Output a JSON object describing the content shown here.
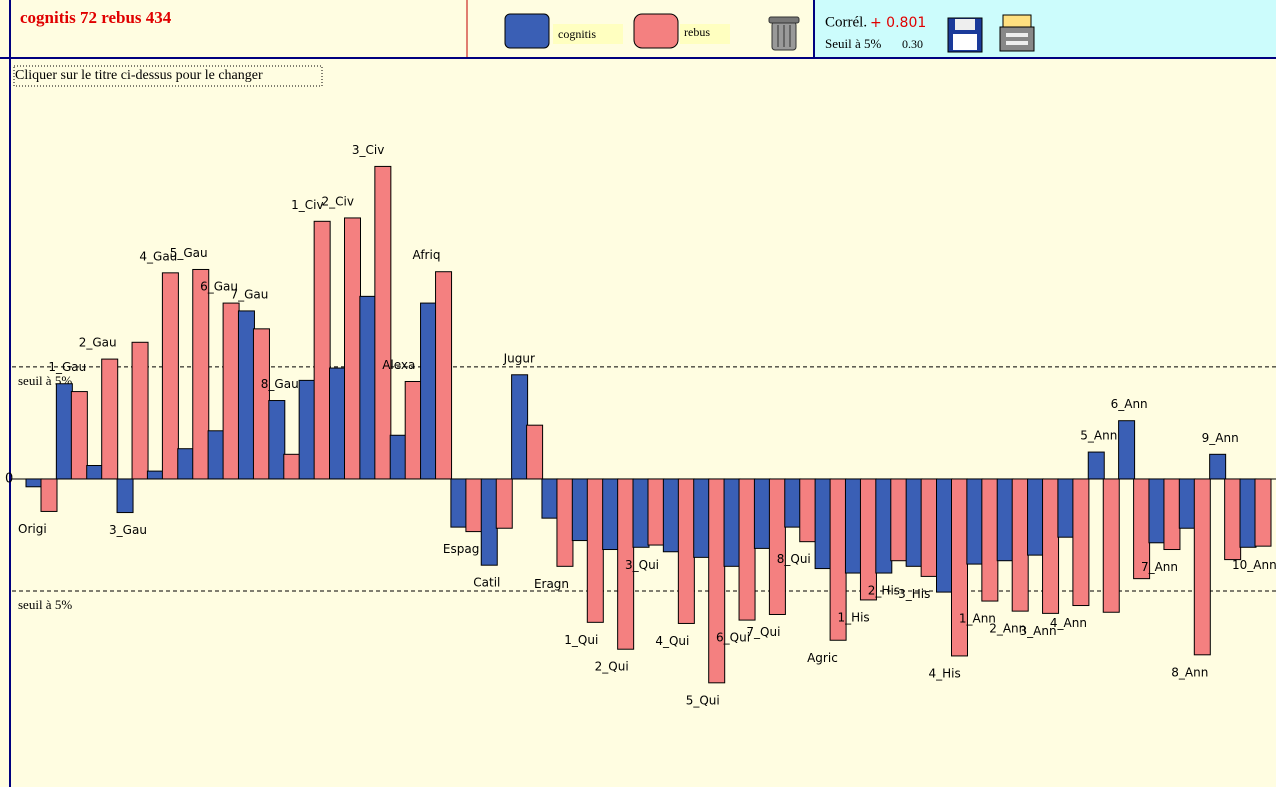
{
  "chart_data": {
    "type": "bar",
    "title": "cognitis 72  rebus 434",
    "hint": "Cliquer sur le titre ci-dessus pour le changer",
    "correlation_label": "Corrél.",
    "correlation": "+ 0.801",
    "threshold_label": "Seuil à 5%",
    "threshold_value": "0.30",
    "categories": [
      "Origi",
      "1_Gau",
      "2_Gau",
      "3_Gau",
      "4_Gau",
      "5_Gau",
      "6_Gau",
      "7_Gau",
      "8_Gau",
      "1_Civ",
      "2_Civ",
      "3_Civ",
      "Alexa",
      "Afriq",
      "Espag",
      "Catil",
      "Jugur",
      "Eragn",
      "1_Qui",
      "2_Qui",
      "3_Qui",
      "4_Qui",
      "5_Qui",
      "6_Qui",
      "7_Qui",
      "8_Qui",
      "Agric",
      "1_His",
      "2_His",
      "3_His",
      "4_His",
      "1_Ann",
      "2_Ann",
      "3_Ann",
      "4_Ann",
      "5_Ann",
      "6_Ann",
      "7_Ann",
      "8_Ann",
      "9_Ann",
      "10_Ann"
    ],
    "series": [
      {
        "name": "cognitis",
        "color": "#3a5fb5",
        "values": [
          -0.07,
          0.85,
          0.12,
          -0.3,
          0.07,
          0.27,
          0.43,
          1.5,
          0.7,
          0.88,
          0.99,
          1.63,
          0.39,
          1.57,
          -0.43,
          -0.77,
          0.93,
          -0.35,
          -0.55,
          -0.63,
          -0.61,
          -0.65,
          -0.7,
          -0.78,
          -0.62,
          -0.43,
          -0.8,
          -0.84,
          -0.84,
          -0.78,
          -1.01,
          -0.76,
          -0.73,
          -0.68,
          -0.52,
          0.24,
          0.52,
          -0.57,
          -0.44,
          0.22,
          -0.61
        ]
      },
      {
        "name": "rebus",
        "color": "#f48080",
        "values": [
          -0.29,
          0.78,
          1.07,
          1.22,
          1.84,
          1.87,
          1.57,
          1.34,
          0.22,
          2.3,
          2.33,
          2.79,
          0.87,
          1.85,
          -0.47,
          -0.44,
          0.48,
          -0.78,
          -1.28,
          -1.52,
          -0.59,
          -1.29,
          -1.82,
          -1.26,
          -1.21,
          -0.56,
          -1.44,
          -1.08,
          -0.73,
          -0.87,
          -1.58,
          -1.09,
          -1.18,
          -1.2,
          -1.13,
          -1.19,
          -0.89,
          -0.63,
          -1.57,
          -0.72,
          -0.6
        ]
      }
    ],
    "thresholds": [
      {
        "value": 1,
        "label": "seuil à 5%"
      },
      {
        "value": -1,
        "label": "seuil à 5%"
      }
    ],
    "ylim": [
      -2.75,
      3.74
    ],
    "yticks": [
      0
    ]
  }
}
